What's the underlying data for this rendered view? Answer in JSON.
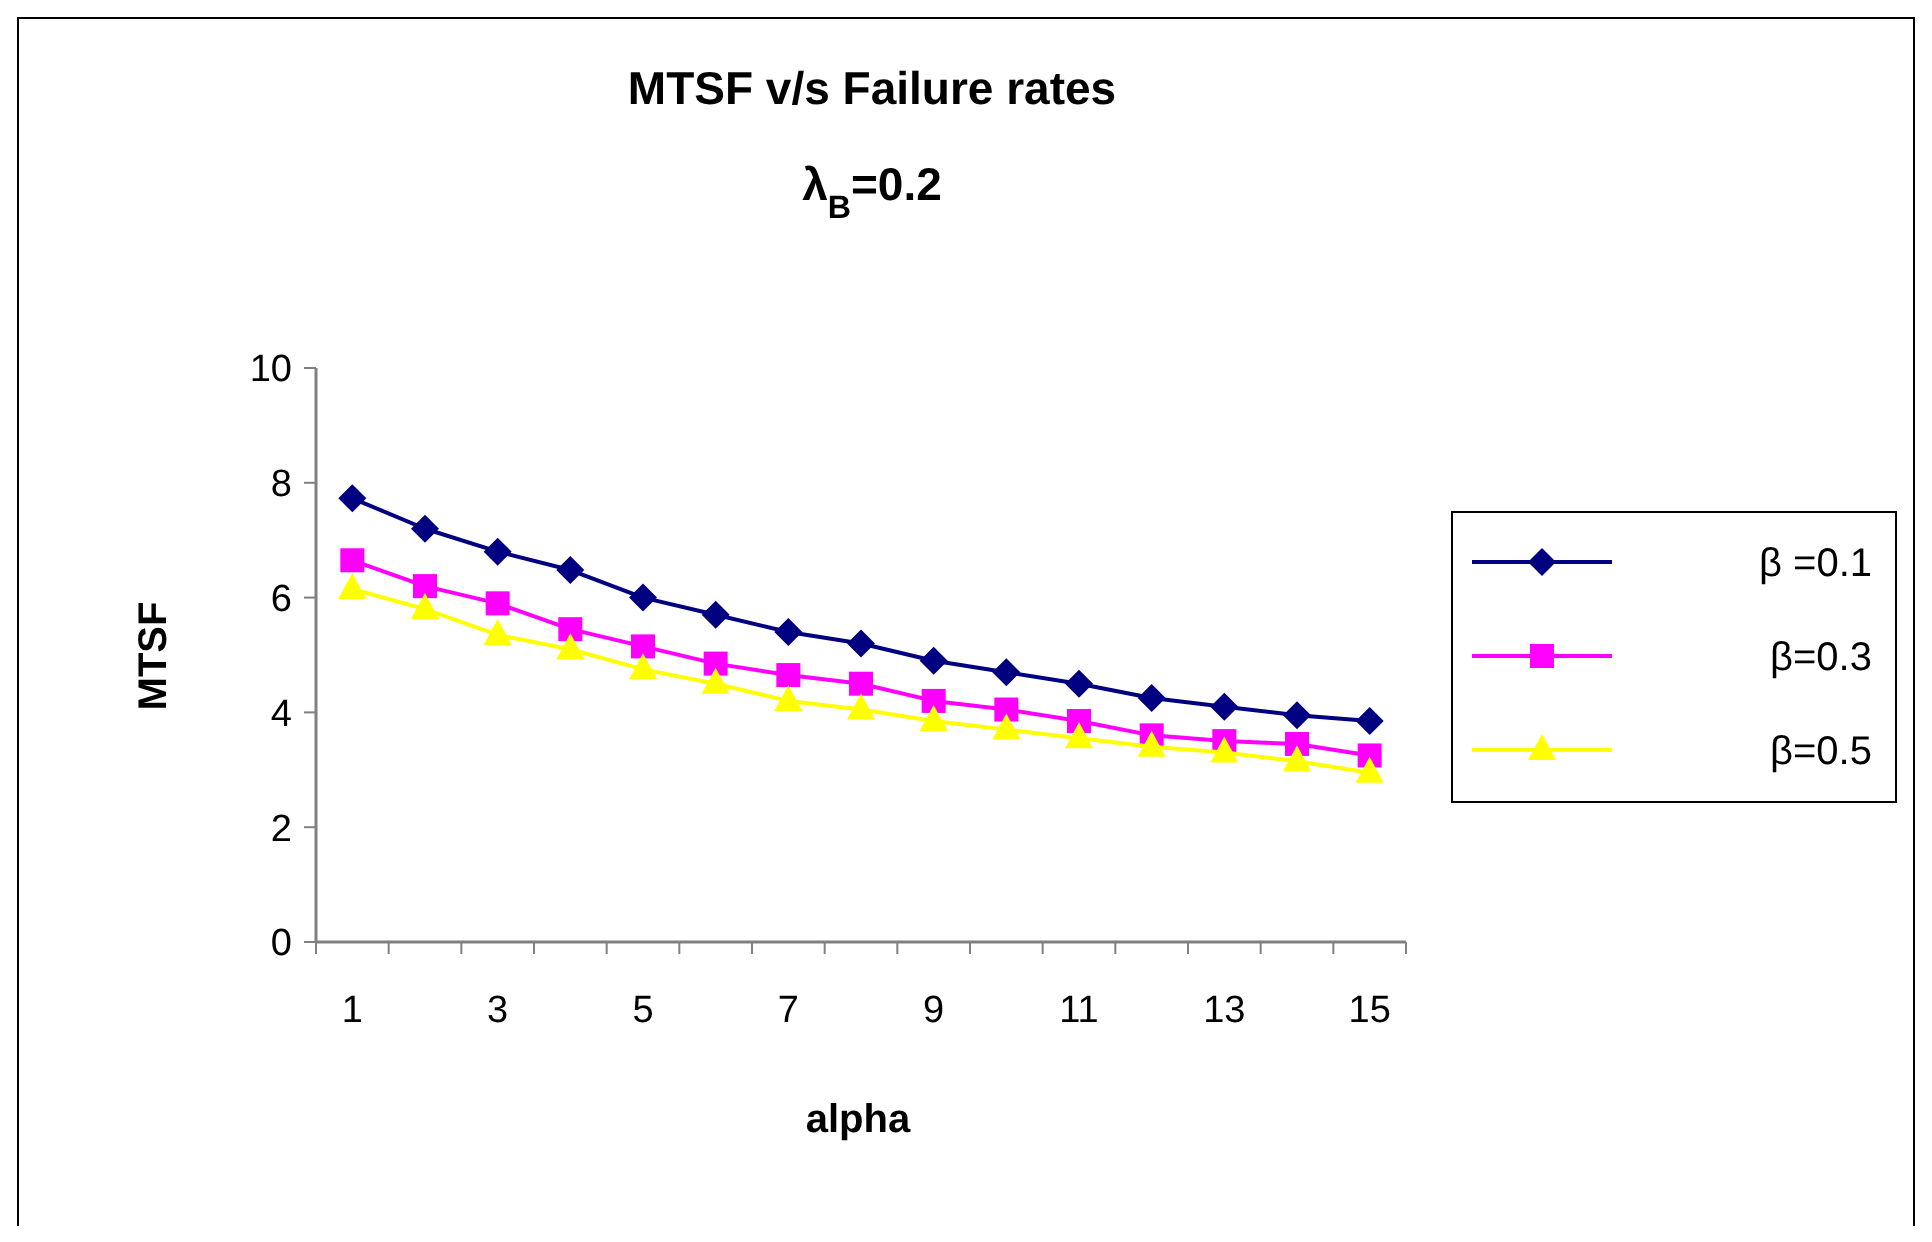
{
  "chart_data": {
    "type": "line",
    "title": "MTSF v/s Failure rates",
    "subtitle": "λ$_{B}$=0.2",
    "xlabel": "alpha",
    "ylabel": "MTSF",
    "x": [
      1,
      2,
      3,
      4,
      5,
      6,
      7,
      8,
      9,
      10,
      11,
      12,
      13,
      14,
      15
    ],
    "xlim": [
      0.5,
      15.5
    ],
    "xticks": [
      1,
      3,
      5,
      7,
      9,
      11,
      13,
      15,
      {
        "value": 0.5,
        "label": null
      },
      {
        "value": 1.5,
        "label": null
      },
      {
        "value": 2.5,
        "label": null
      },
      {
        "value": 3.5,
        "label": null
      },
      {
        "value": 4.5,
        "label": null
      },
      {
        "value": 5.5,
        "label": null
      },
      {
        "value": 6.5,
        "label": null
      },
      {
        "value": 7.5,
        "label": null
      },
      {
        "value": 8.5,
        "label": null
      },
      {
        "value": 9.5,
        "label": null
      },
      {
        "value": 10.5,
        "label": null
      },
      {
        "value": 11.5,
        "label": null
      },
      {
        "value": 12.5,
        "label": null
      },
      {
        "value": 13.5,
        "label": null
      },
      {
        "value": 14.5,
        "label": null
      },
      {
        "value": 15.5,
        "label": null
      }
    ],
    "series": [
      {
        "name": "β =0.1",
        "color": "#000080",
        "marker": "diamond",
        "values": [
          7.73,
          7.2,
          6.8,
          6.48,
          6.0,
          5.7,
          5.4,
          5.2,
          4.9,
          4.7,
          4.5,
          4.25,
          4.1,
          3.95,
          3.85
        ]
      },
      {
        "name": "β=0.3",
        "color": "#ff00ff",
        "marker": "square",
        "values": [
          6.65,
          6.2,
          5.9,
          5.45,
          5.15,
          4.85,
          4.65,
          4.5,
          4.2,
          4.05,
          3.85,
          3.6,
          3.5,
          3.45,
          3.25
        ]
      },
      {
        "name": "β=0.5",
        "color": "#ffff00",
        "marker": "triangle",
        "values": [
          6.15,
          5.8,
          5.35,
          5.1,
          4.75,
          4.5,
          4.2,
          4.05,
          3.85,
          3.7,
          3.55,
          3.4,
          3.3,
          3.15,
          2.95
        ]
      }
    ],
    "ylim": [
      0,
      10
    ],
    "yticks": [
      0,
      2,
      4,
      6,
      8,
      10
    ],
    "grid": false,
    "legend": "right"
  }
}
